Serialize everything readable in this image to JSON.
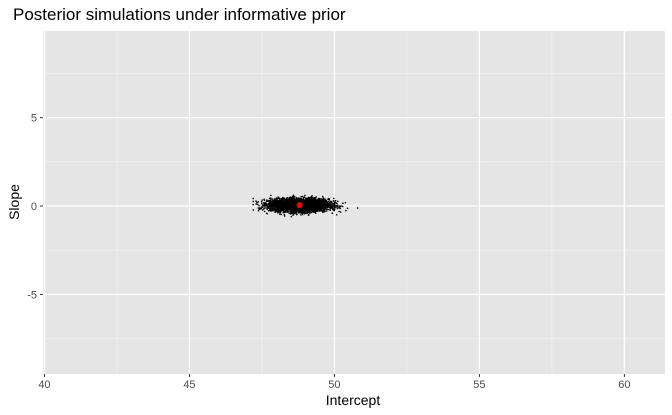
{
  "chart_data": {
    "type": "scatter",
    "title": "Posterior simulations under informative prior",
    "xlabel": "Intercept",
    "ylabel": "Slope",
    "xlim": [
      39.95,
      61.4
    ],
    "ylim": [
      -9.5,
      9.9
    ],
    "x_ticks": [
      40,
      45,
      50,
      55,
      60
    ],
    "x_tick_labels": [
      "40",
      "45",
      "50",
      "55",
      "60"
    ],
    "y_ticks": [
      -5,
      0,
      5
    ],
    "y_tick_labels": [
      "-5",
      "0",
      "5"
    ],
    "grid": true,
    "legend": "none",
    "series": [
      {
        "role": "posterior-draws",
        "color": "#000000",
        "marker_size": "small",
        "cluster": {
          "n_points": 4000,
          "x_mean": 48.8,
          "x_sd": 0.5,
          "y_mean": 0.05,
          "y_sd": 0.18,
          "x_range": [
            47.2,
            50.8
          ],
          "y_range": [
            -0.6,
            0.6
          ]
        }
      },
      {
        "role": "point-estimate",
        "color": "#ff0000",
        "marker_size": "large",
        "x": [
          48.8
        ],
        "y": [
          0.05
        ]
      }
    ],
    "colors": {
      "panel_background": "#e5e5e5",
      "grid_major": "#ffffff",
      "grid_minor": "#f2f2f2"
    }
  }
}
